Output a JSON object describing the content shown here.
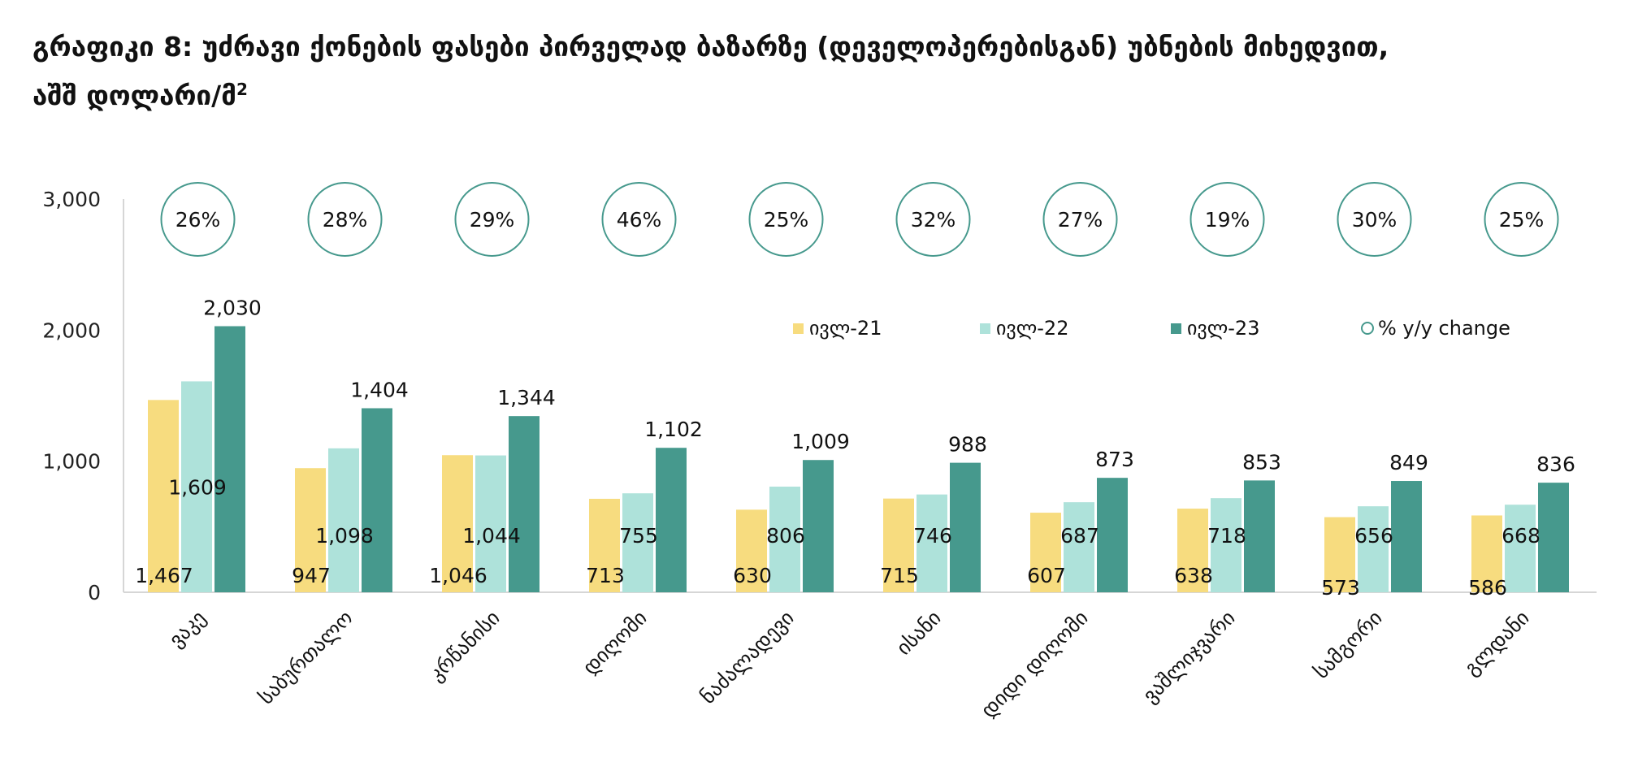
{
  "title_main": "გრაფიკი 8: უძრავი ქონების ფასები პირველად ბაზარზე (დეველოპერებისგან) უბნების მიხედვით,",
  "title_line2": "აშშ დოლარი/მ",
  "title_sup": "2",
  "colors": {
    "jul21": "#f7dc7f",
    "jul22": "#aee2da",
    "jul23": "#46998d",
    "circle": "#46998d",
    "axis": "#d6d6d6"
  },
  "chart_data": {
    "type": "bar",
    "categories": [
      "ვაკე",
      "საბურთალო",
      "კრწანისი",
      "დიღომი",
      "ნაძალადევი",
      "ისანი",
      "დიდი დიღომი",
      "ვაშლიჯვარი",
      "სამგორი",
      "გლდანი"
    ],
    "series": [
      {
        "name": "ივლ-21",
        "values": [
          1467,
          947,
          1046,
          713,
          630,
          715,
          607,
          638,
          573,
          586
        ],
        "labels": [
          "1,467",
          "947",
          "1,046",
          "713",
          "630",
          "715",
          "607",
          "638",
          "573",
          "586"
        ]
      },
      {
        "name": "ივლ-22",
        "values": [
          1609,
          1098,
          1044,
          755,
          806,
          746,
          687,
          718,
          656,
          668
        ],
        "labels": [
          "1,609",
          "1,098",
          "1,044",
          "755",
          "806",
          "746",
          "687",
          "718",
          "656",
          "668"
        ]
      },
      {
        "name": "ივლ-23",
        "values": [
          2030,
          1404,
          1344,
          1102,
          1009,
          988,
          873,
          853,
          849,
          836
        ],
        "labels": [
          "2,030",
          "1,404",
          "1,344",
          "1,102",
          "1,009",
          "988",
          "873",
          "853",
          "849",
          "836"
        ]
      }
    ],
    "yoy_change": [
      "26%",
      "28%",
      "29%",
      "46%",
      "25%",
      "32%",
      "27%",
      "19%",
      "30%",
      "25%"
    ],
    "yoy_legend": "% y/y change",
    "ylim": [
      0,
      3000
    ],
    "yticks": [
      0,
      1000,
      2000,
      3000
    ],
    "ytick_labels": [
      "0",
      "1,000",
      "2,000",
      "3,000"
    ],
    "legend_placement": "top-right inside plot"
  }
}
